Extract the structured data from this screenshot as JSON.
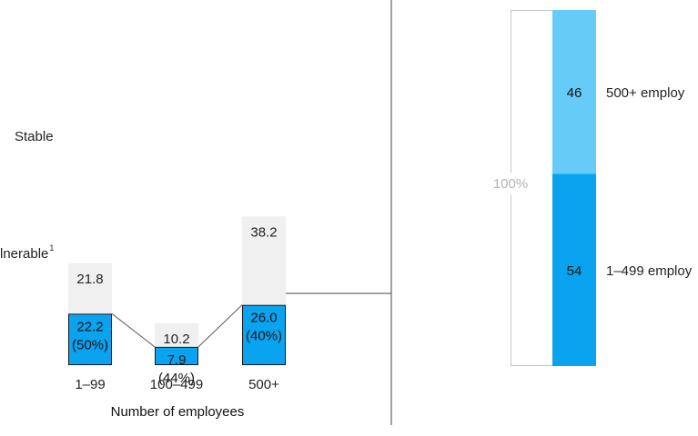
{
  "chart_data": [
    {
      "type": "bar",
      "xlabel": "Number of employees",
      "categories": [
        "1–99",
        "100–499",
        "500+"
      ],
      "row_labels": {
        "stable": "Stable",
        "vulnerable": "lnerable",
        "vulnerable_sup": "1"
      },
      "series": [
        {
          "name": "Vulnerable",
          "values": [
            22.2,
            7.9,
            26.0
          ],
          "labels": [
            "22.2",
            "7.9",
            "26.0"
          ],
          "shares": [
            "(50%)",
            "(44%)",
            "(40%)"
          ]
        },
        {
          "name": "Stable",
          "values": [
            21.8,
            10.2,
            38.2
          ],
          "labels": [
            "21.8",
            "10.2",
            "38.2"
          ]
        }
      ],
      "colors": {
        "vulnerable": "#0aa3f0",
        "stable": "#f0f0f0",
        "edge": "#1a1a1a",
        "connector": "#555555"
      }
    },
    {
      "type": "bar",
      "stacked": true,
      "total_label": "100%",
      "segments": [
        {
          "name": "500+ employ",
          "value": 46,
          "label": "46",
          "color": "#66ccf7"
        },
        {
          "name": "1–499 employ",
          "value": 54,
          "label": "54",
          "color": "#0aa3f0"
        }
      ],
      "colors": {
        "bracket": "#c8c8c8",
        "total_text": "#b5b5b5"
      }
    }
  ]
}
